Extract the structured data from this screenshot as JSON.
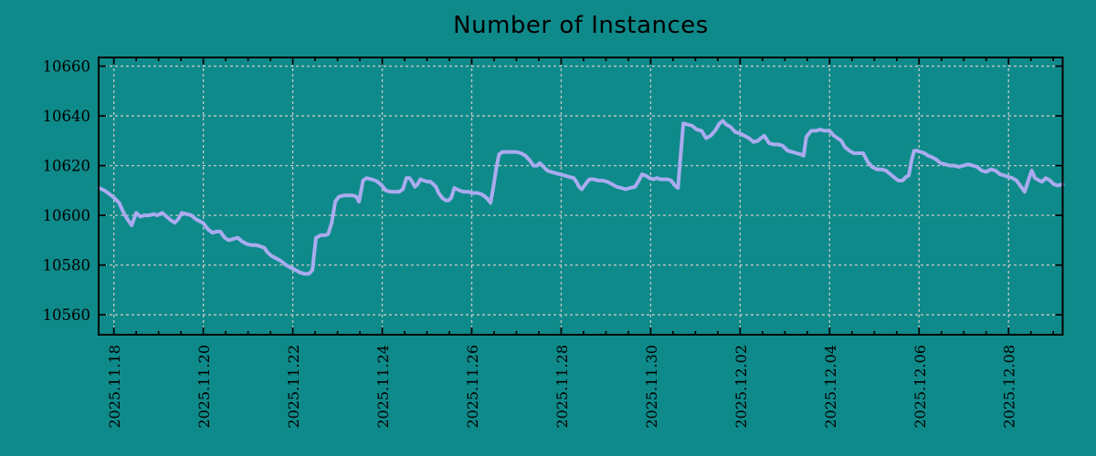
{
  "chart_data": {
    "type": "line",
    "title": "Number of Instances",
    "grid": true,
    "legend": "none",
    "colors": {
      "background": "#0f8a8a",
      "line": "#aaabef",
      "grid": "#c6c6c6",
      "axis": "#000000",
      "text": "#000000"
    },
    "x_axis": {
      "tick_labels": [
        "2025.11.18",
        "2025.11.20",
        "2025.11.22",
        "2025.11.24",
        "2025.11.26",
        "2025.11.28",
        "2025.11.30",
        "2025.12.02",
        "2025.12.04",
        "2025.12.06",
        "2025.12.08"
      ],
      "tick_days": [
        0,
        2,
        4,
        6,
        8,
        10,
        12,
        14,
        16,
        18,
        20
      ],
      "minor_step_days": 0.5,
      "range_days": [
        -0.34,
        21.21
      ]
    },
    "y_axis": {
      "ticks": [
        10560,
        10580,
        10600,
        10620,
        10640,
        10660
      ],
      "range": [
        10552,
        10663.5
      ]
    },
    "series": [
      {
        "name": "instances",
        "points": [
          [
            -0.33,
            10611
          ],
          [
            -0.21,
            10610
          ],
          [
            -0.09,
            10608.5
          ],
          [
            0.01,
            10607
          ],
          [
            0.12,
            10605
          ],
          [
            0.22,
            10601
          ],
          [
            0.32,
            10598
          ],
          [
            0.4,
            10596
          ],
          [
            0.5,
            10601
          ],
          [
            0.59,
            10599.5
          ],
          [
            0.69,
            10600
          ],
          [
            0.79,
            10600
          ],
          [
            0.89,
            10600.5
          ],
          [
            0.97,
            10600
          ],
          [
            1.08,
            10601
          ],
          [
            1.18,
            10599.5
          ],
          [
            1.28,
            10598
          ],
          [
            1.36,
            10597
          ],
          [
            1.44,
            10598.5
          ],
          [
            1.52,
            10601
          ],
          [
            1.63,
            10600.5
          ],
          [
            1.73,
            10600
          ],
          [
            1.83,
            10598.5
          ],
          [
            1.93,
            10597.5
          ],
          [
            1.99,
            10597
          ],
          [
            2.1,
            10594.5
          ],
          [
            2.2,
            10593
          ],
          [
            2.3,
            10593.5
          ],
          [
            2.38,
            10593.5
          ],
          [
            2.48,
            10591
          ],
          [
            2.57,
            10590
          ],
          [
            2.67,
            10590.5
          ],
          [
            2.77,
            10591
          ],
          [
            2.87,
            10589.5
          ],
          [
            2.97,
            10588.5
          ],
          [
            3.08,
            10588
          ],
          [
            3.18,
            10588
          ],
          [
            3.28,
            10587.5
          ],
          [
            3.36,
            10587
          ],
          [
            3.44,
            10585
          ],
          [
            3.54,
            10583.5
          ],
          [
            3.65,
            10582.5
          ],
          [
            3.75,
            10581.5
          ],
          [
            3.85,
            10580
          ],
          [
            3.95,
            10579
          ],
          [
            4.06,
            10578
          ],
          [
            4.16,
            10577
          ],
          [
            4.26,
            10576.5
          ],
          [
            4.36,
            10576.5
          ],
          [
            4.44,
            10578
          ],
          [
            4.48,
            10585
          ],
          [
            4.52,
            10591
          ],
          [
            4.63,
            10592
          ],
          [
            4.73,
            10592
          ],
          [
            4.79,
            10592.5
          ],
          [
            4.87,
            10597
          ],
          [
            4.95,
            10605.5
          ],
          [
            5.03,
            10607.5
          ],
          [
            5.14,
            10608
          ],
          [
            5.24,
            10608
          ],
          [
            5.34,
            10608
          ],
          [
            5.42,
            10607.5
          ],
          [
            5.48,
            10605.5
          ],
          [
            5.57,
            10614
          ],
          [
            5.65,
            10615
          ],
          [
            5.75,
            10614.5
          ],
          [
            5.85,
            10614
          ],
          [
            5.93,
            10613
          ],
          [
            5.99,
            10612
          ],
          [
            6.08,
            10610
          ],
          [
            6.18,
            10609.5
          ],
          [
            6.28,
            10609.5
          ],
          [
            6.38,
            10609.5
          ],
          [
            6.46,
            10610.5
          ],
          [
            6.54,
            10615
          ],
          [
            6.61,
            10615
          ],
          [
            6.67,
            10613.5
          ],
          [
            6.73,
            10611.5
          ],
          [
            6.79,
            10612.5
          ],
          [
            6.85,
            10614.5
          ],
          [
            6.93,
            10614
          ],
          [
            7.01,
            10613.5
          ],
          [
            7.08,
            10613.5
          ],
          [
            7.14,
            10612.5
          ],
          [
            7.2,
            10611.5
          ],
          [
            7.26,
            10609
          ],
          [
            7.34,
            10607
          ],
          [
            7.42,
            10606
          ],
          [
            7.48,
            10606
          ],
          [
            7.54,
            10607
          ],
          [
            7.61,
            10611
          ],
          [
            7.67,
            10610.5
          ],
          [
            7.73,
            10610
          ],
          [
            7.81,
            10609.5
          ],
          [
            7.91,
            10609.5
          ],
          [
            8.01,
            10609
          ],
          [
            8.12,
            10609
          ],
          [
            8.22,
            10608.5
          ],
          [
            8.3,
            10607.5
          ],
          [
            8.36,
            10606.5
          ],
          [
            8.42,
            10605
          ],
          [
            8.48,
            10611
          ],
          [
            8.55,
            10619
          ],
          [
            8.61,
            10624.5
          ],
          [
            8.69,
            10625.5
          ],
          [
            8.79,
            10625.5
          ],
          [
            8.89,
            10625.5
          ],
          [
            8.99,
            10625.5
          ],
          [
            9.1,
            10625
          ],
          [
            9.2,
            10624
          ],
          [
            9.3,
            10622
          ],
          [
            9.38,
            10620
          ],
          [
            9.46,
            10620
          ],
          [
            9.52,
            10621
          ],
          [
            9.61,
            10619.5
          ],
          [
            9.69,
            10618
          ],
          [
            9.77,
            10617.5
          ],
          [
            9.87,
            10617
          ],
          [
            9.97,
            10616.5
          ],
          [
            10.08,
            10616
          ],
          [
            10.18,
            10615.5
          ],
          [
            10.28,
            10615
          ],
          [
            10.34,
            10613.5
          ],
          [
            10.4,
            10611.5
          ],
          [
            10.46,
            10610.5
          ],
          [
            10.52,
            10612
          ],
          [
            10.63,
            10614.5
          ],
          [
            10.73,
            10614.5
          ],
          [
            10.83,
            10614
          ],
          [
            10.93,
            10614
          ],
          [
            11.03,
            10613.5
          ],
          [
            11.14,
            10612.5
          ],
          [
            11.24,
            10611.5
          ],
          [
            11.34,
            10611
          ],
          [
            11.44,
            10610.5
          ],
          [
            11.54,
            10611
          ],
          [
            11.65,
            10611.5
          ],
          [
            11.75,
            10614.5
          ],
          [
            11.81,
            10616.5
          ],
          [
            11.89,
            10616
          ],
          [
            11.97,
            10615
          ],
          [
            12.06,
            10614.5
          ],
          [
            12.14,
            10615
          ],
          [
            12.22,
            10614.5
          ],
          [
            12.3,
            10614.5
          ],
          [
            12.38,
            10614.5
          ],
          [
            12.46,
            10614
          ],
          [
            12.54,
            10612
          ],
          [
            12.61,
            10611
          ],
          [
            12.67,
            10624
          ],
          [
            12.73,
            10637
          ],
          [
            12.83,
            10636.5
          ],
          [
            12.93,
            10636
          ],
          [
            13.03,
            10634.5
          ],
          [
            13.14,
            10634
          ],
          [
            13.24,
            10631
          ],
          [
            13.34,
            10632
          ],
          [
            13.44,
            10634
          ],
          [
            13.54,
            10637
          ],
          [
            13.61,
            10638
          ],
          [
            13.69,
            10636.5
          ],
          [
            13.79,
            10635.5
          ],
          [
            13.89,
            10633.5
          ],
          [
            13.99,
            10633
          ],
          [
            14.1,
            10632
          ],
          [
            14.2,
            10631
          ],
          [
            14.3,
            10629.5
          ],
          [
            14.4,
            10630
          ],
          [
            14.46,
            10631
          ],
          [
            14.54,
            10632
          ],
          [
            14.65,
            10629
          ],
          [
            14.75,
            10628.5
          ],
          [
            14.85,
            10628.5
          ],
          [
            14.95,
            10628
          ],
          [
            15.06,
            10626
          ],
          [
            15.16,
            10625.5
          ],
          [
            15.26,
            10625
          ],
          [
            15.36,
            10624.5
          ],
          [
            15.42,
            10624
          ],
          [
            15.48,
            10631.5
          ],
          [
            15.59,
            10634
          ],
          [
            15.69,
            10634
          ],
          [
            15.79,
            10634.5
          ],
          [
            15.89,
            10634
          ],
          [
            16,
            10634
          ],
          [
            16.1,
            10632
          ],
          [
            16.18,
            10631
          ],
          [
            16.26,
            10630
          ],
          [
            16.34,
            10627.5
          ],
          [
            16.44,
            10626
          ],
          [
            16.54,
            10625
          ],
          [
            16.65,
            10625
          ],
          [
            16.75,
            10625
          ],
          [
            16.85,
            10621.5
          ],
          [
            16.95,
            10619.5
          ],
          [
            17.06,
            10618.5
          ],
          [
            17.16,
            10618.5
          ],
          [
            17.26,
            10618
          ],
          [
            17.36,
            10616.5
          ],
          [
            17.46,
            10615
          ],
          [
            17.54,
            10614
          ],
          [
            17.63,
            10614
          ],
          [
            17.71,
            10615.5
          ],
          [
            17.77,
            10616
          ],
          [
            17.83,
            10622
          ],
          [
            17.89,
            10626
          ],
          [
            17.95,
            10626
          ],
          [
            18.04,
            10625.5
          ],
          [
            18.12,
            10625
          ],
          [
            18.2,
            10624
          ],
          [
            18.28,
            10623.5
          ],
          [
            18.38,
            10622.5
          ],
          [
            18.48,
            10621
          ],
          [
            18.59,
            10620.5
          ],
          [
            18.69,
            10620
          ],
          [
            18.79,
            10620
          ],
          [
            18.89,
            10619.5
          ],
          [
            18.99,
            10620
          ],
          [
            19.1,
            10620.5
          ],
          [
            19.2,
            10620
          ],
          [
            19.3,
            10619.5
          ],
          [
            19.4,
            10618
          ],
          [
            19.5,
            10617.5
          ],
          [
            19.61,
            10618.5
          ],
          [
            19.71,
            10618
          ],
          [
            19.81,
            10616.5
          ],
          [
            19.91,
            10616
          ],
          [
            19.99,
            10615.5
          ],
          [
            20.08,
            10615
          ],
          [
            20.18,
            10614
          ],
          [
            20.28,
            10611.5
          ],
          [
            20.36,
            10609.5
          ],
          [
            20.46,
            10615
          ],
          [
            20.52,
            10618
          ],
          [
            20.59,
            10615
          ],
          [
            20.69,
            10614
          ],
          [
            20.75,
            10613.5
          ],
          [
            20.83,
            10615
          ],
          [
            20.93,
            10614
          ],
          [
            21.01,
            10612.5
          ],
          [
            21.1,
            10612
          ],
          [
            21.21,
            10612.5
          ]
        ]
      }
    ]
  }
}
